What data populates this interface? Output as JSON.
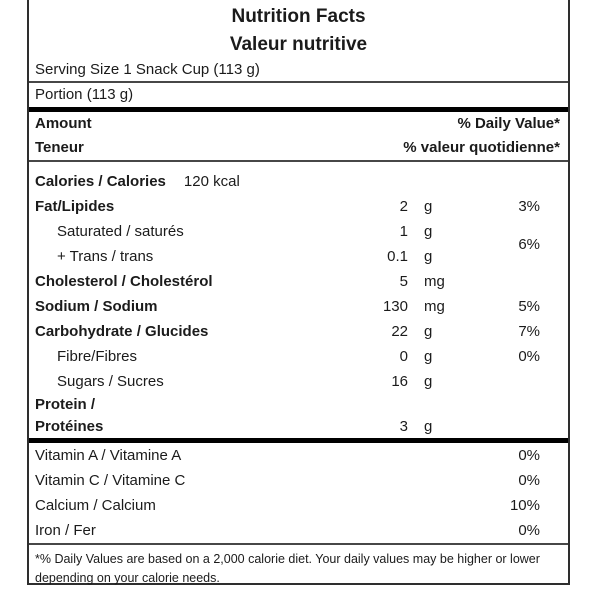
{
  "titles": {
    "en": "Nutrition Facts",
    "fr": "Valeur nutritive"
  },
  "serving": {
    "line1": "Serving Size 1 Snack Cup (113 g)",
    "line2": "Portion (113 g)"
  },
  "header": {
    "amount_en": "Amount",
    "dv_en": "% Daily Value*",
    "amount_fr": "Teneur",
    "dv_fr": "% valeur quotidienne*"
  },
  "calories": {
    "label": "Calories / Calories",
    "value": "120 kcal"
  },
  "rows": {
    "fat": {
      "name": "Fat/Lipides",
      "amount": "2",
      "unit": "g",
      "dv": "3%"
    },
    "saturated": {
      "name": "Saturated / saturés",
      "amount": "1",
      "unit": "g"
    },
    "trans": {
      "name": "+ Trans / trans",
      "amount": "0.1",
      "unit": "g"
    },
    "sat_trans_dv": "6%",
    "cholesterol": {
      "name": "Cholesterol / Cholestérol",
      "amount": "5",
      "unit": "mg",
      "dv": ""
    },
    "sodium": {
      "name": "Sodium / Sodium",
      "amount": "130",
      "unit": "mg",
      "dv": "5%"
    },
    "carbohydrate": {
      "name": "Carbohydrate / Glucides",
      "amount": "22",
      "unit": "g",
      "dv": "7%"
    },
    "fibre": {
      "name": "Fibre/Fibres",
      "amount": "0",
      "unit": "g",
      "dv": "0%"
    },
    "sugars": {
      "name": "Sugars / Sucres",
      "amount": "16",
      "unit": "g",
      "dv": ""
    },
    "protein": {
      "line1": "Protein /",
      "line2": "Protéines",
      "amount": "3",
      "unit": "g"
    }
  },
  "micronutrients": [
    {
      "name": "Vitamin A / Vitamine A",
      "dv": "0%"
    },
    {
      "name": "Vitamin C / Vitamine C",
      "dv": "0%"
    },
    {
      "name": "Calcium / Calcium",
      "dv": "10%"
    },
    {
      "name": "Iron / Fer",
      "dv": "0%"
    }
  ],
  "footnote": "*% Daily Values are based on a 2,000 calorie diet.  Your daily values may be higher or lower depending on your calorie needs."
}
